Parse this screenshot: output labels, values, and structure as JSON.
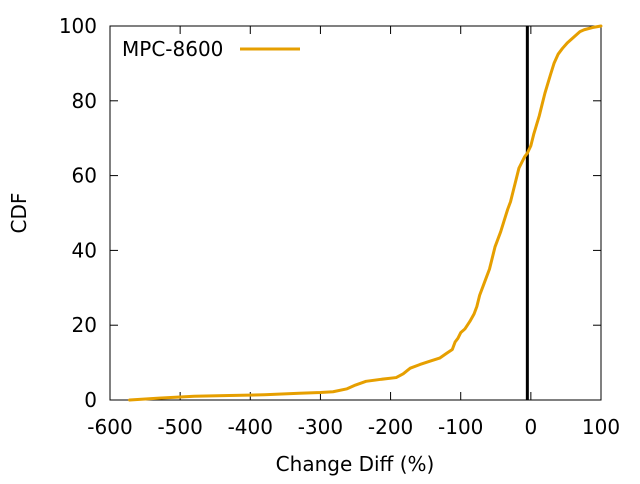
{
  "chart_data": {
    "type": "line",
    "title": "",
    "xlabel": "Change Diff (%)",
    "ylabel": "CDF",
    "xlim": [
      -600,
      100
    ],
    "ylim": [
      0,
      100
    ],
    "xticks": [
      -600,
      -500,
      -400,
      -300,
      -200,
      -100,
      0,
      100
    ],
    "yticks": [
      0,
      20,
      40,
      60,
      80,
      100
    ],
    "grid": false,
    "legend": "top-left",
    "reference_line": {
      "x": -5,
      "color": "#000000"
    },
    "series": [
      {
        "name": "MPC-8600",
        "color": "#e69f00",
        "x": [
          -572,
          -530,
          -480,
          -430,
          -380,
          -330,
          -300,
          -282,
          -262,
          -250,
          -235,
          -215,
          -192,
          -182,
          -172,
          -158,
          -145,
          -130,
          -120,
          -112,
          -108,
          -104,
          -100,
          -94,
          -87,
          -81,
          -77,
          -73,
          -67,
          -63,
          -59,
          -55,
          -51,
          -47,
          -43,
          -38,
          -33,
          -29,
          -25,
          -21,
          -17,
          -13,
          -9,
          -5,
          0,
          4,
          8,
          12,
          16,
          20,
          24,
          28,
          33,
          39,
          45,
          52,
          58,
          64,
          70,
          76,
          82,
          88,
          94,
          100
        ],
        "y": [
          0,
          0.5,
          1,
          1.2,
          1.4,
          1.8,
          2,
          2.2,
          3,
          4,
          5,
          5.5,
          6,
          7,
          8.5,
          9.5,
          10.3,
          11.2,
          12.5,
          13.5,
          15.5,
          16.5,
          18,
          19,
          21,
          23,
          25,
          28,
          31,
          33,
          35,
          38,
          41,
          43,
          45,
          48,
          51,
          53,
          56,
          59,
          62,
          63.5,
          65,
          66,
          68,
          71,
          73.5,
          76,
          79,
          82,
          84.5,
          87,
          90,
          92.5,
          94,
          95.5,
          96.5,
          97.5,
          98.5,
          99,
          99.3,
          99.6,
          99.8,
          100
        ]
      }
    ]
  }
}
